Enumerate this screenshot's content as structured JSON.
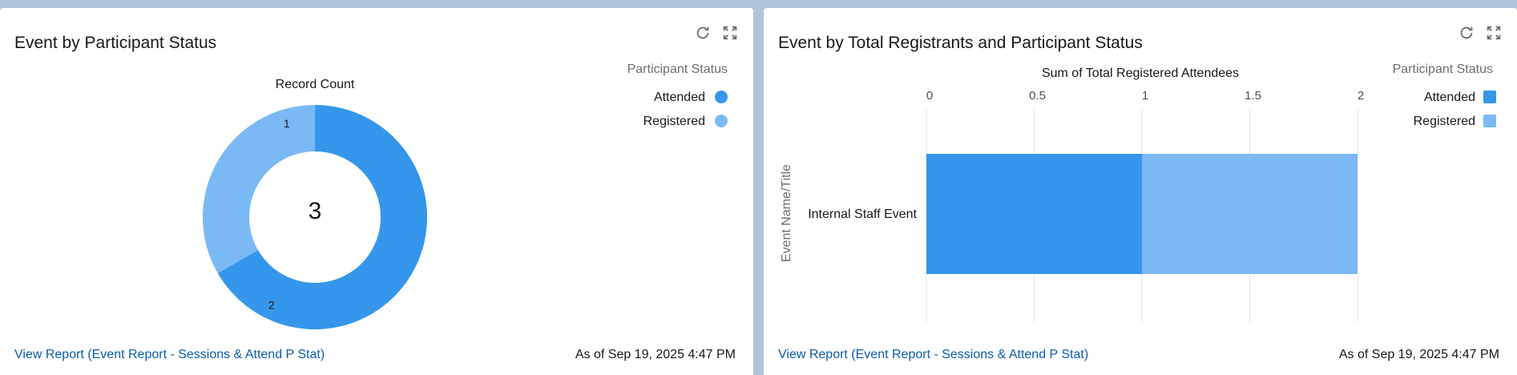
{
  "left_card": {
    "title": "Event by Participant Status",
    "refresh_icon": "refresh-icon",
    "expand_icon": "expand-icon",
    "footer_link": "View Report (Event Report - Sessions & Attend P Stat)",
    "footer_time": "As of Sep 19, 2025 4:47 PM"
  },
  "right_card": {
    "title": "Event by Total Registrants and Participant Status",
    "refresh_icon": "refresh-icon",
    "expand_icon": "expand-icon",
    "footer_link": "View Report (Event Report - Sessions & Attend P Stat)",
    "footer_time": "As of Sep 19, 2025 4:47 PM"
  },
  "colors": {
    "attended": "#3597ec",
    "registered": "#7ab9f4"
  },
  "chart_data": [
    {
      "type": "pie",
      "subtype": "donut",
      "title": "Record Count",
      "center_value": "3",
      "legend_title": "Participant Status",
      "legend_placement": "top-right",
      "categories": [
        "Attended",
        "Registered"
      ],
      "values": [
        2,
        1
      ]
    },
    {
      "type": "bar",
      "orientation": "horizontal",
      "stacked": true,
      "title": "Sum of Total Registered Attendees",
      "ylabel": "Event Name/Title",
      "xlabel": "",
      "categories": [
        "Internal Staff Event"
      ],
      "xlim": [
        0,
        2
      ],
      "ticks": [
        "0",
        "0.5",
        "1",
        "1.5",
        "2"
      ],
      "legend_title": "Participant Status",
      "legend_placement": "top-right",
      "series": [
        {
          "name": "Attended",
          "values": [
            1
          ]
        },
        {
          "name": "Registered",
          "values": [
            1
          ]
        }
      ]
    }
  ]
}
